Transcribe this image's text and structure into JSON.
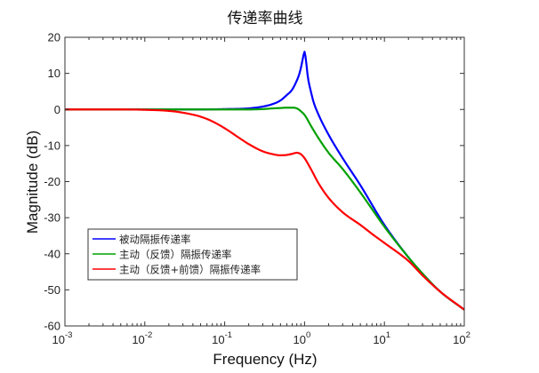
{
  "chart_data": {
    "type": "line",
    "title": "传递率曲线",
    "xlabel": "Frequency  (Hz)",
    "ylabel": "Magnitude (dB)",
    "xscale": "log",
    "xlim": [
      0.001,
      100
    ],
    "ylim": [
      -60,
      20
    ],
    "x_ticks": [
      {
        "base": "10",
        "exp": "-3"
      },
      {
        "base": "10",
        "exp": "-2"
      },
      {
        "base": "10",
        "exp": "-1"
      },
      {
        "base": "10",
        "exp": "0"
      },
      {
        "base": "10",
        "exp": "1"
      },
      {
        "base": "10",
        "exp": "2"
      }
    ],
    "y_ticks": [
      "20",
      "10",
      "0",
      "-10",
      "-20",
      "-30",
      "-40",
      "-50",
      "-60"
    ],
    "legend_position": "lower-left",
    "series": [
      {
        "name": "被动隔振传递率",
        "color": "#0000ff",
        "x": [
          0.001,
          0.01,
          0.05,
          0.1,
          0.2,
          0.3,
          0.4,
          0.5,
          0.6,
          0.7,
          0.8,
          0.85,
          0.9,
          0.95,
          1.0,
          1.05,
          1.1,
          1.2,
          1.3,
          1.5,
          2,
          3,
          5,
          10,
          20,
          30,
          50,
          100
        ],
        "y": [
          0,
          0,
          0,
          0.1,
          0.3,
          0.8,
          1.5,
          2.5,
          4,
          5.5,
          8,
          9.5,
          11.5,
          14,
          16,
          13,
          9,
          5,
          2,
          -1.5,
          -7,
          -13.5,
          -21,
          -32,
          -41,
          -45.5,
          -50.5,
          -55.5
        ]
      },
      {
        "name": "主动（反馈）隔振传递率",
        "color": "#00a000",
        "x": [
          0.001,
          0.01,
          0.05,
          0.1,
          0.2,
          0.3,
          0.4,
          0.5,
          0.6,
          0.7,
          0.8,
          0.9,
          1.0,
          1.1,
          1.2,
          1.5,
          2,
          3,
          5,
          10,
          20,
          30,
          50,
          100
        ],
        "y": [
          0,
          0,
          0,
          0,
          0,
          0.1,
          0.3,
          0.4,
          0.5,
          0.5,
          0.3,
          -0.5,
          -1.5,
          -3,
          -4.5,
          -8,
          -12,
          -16.5,
          -23,
          -32.5,
          -41,
          -45.5,
          -50.5,
          -55.5
        ]
      },
      {
        "name": "主动（反馈+前馈）隔振传递率",
        "color": "#ff0000",
        "x": [
          0.001,
          0.005,
          0.01,
          0.02,
          0.03,
          0.05,
          0.07,
          0.1,
          0.15,
          0.2,
          0.3,
          0.4,
          0.5,
          0.6,
          0.7,
          0.8,
          0.9,
          1.0,
          1.2,
          1.5,
          2,
          3,
          5,
          7,
          10,
          20,
          30,
          50,
          100
        ],
        "y": [
          0,
          0,
          -0.1,
          -0.4,
          -0.9,
          -2,
          -3.3,
          -5.2,
          -7.8,
          -9.6,
          -11.6,
          -12.4,
          -12.7,
          -12.6,
          -12.3,
          -12.0,
          -12.4,
          -13.5,
          -16.5,
          -20.5,
          -24.5,
          -28.5,
          -32,
          -34.5,
          -37,
          -42,
          -46,
          -50.5,
          -55.5
        ]
      }
    ]
  }
}
